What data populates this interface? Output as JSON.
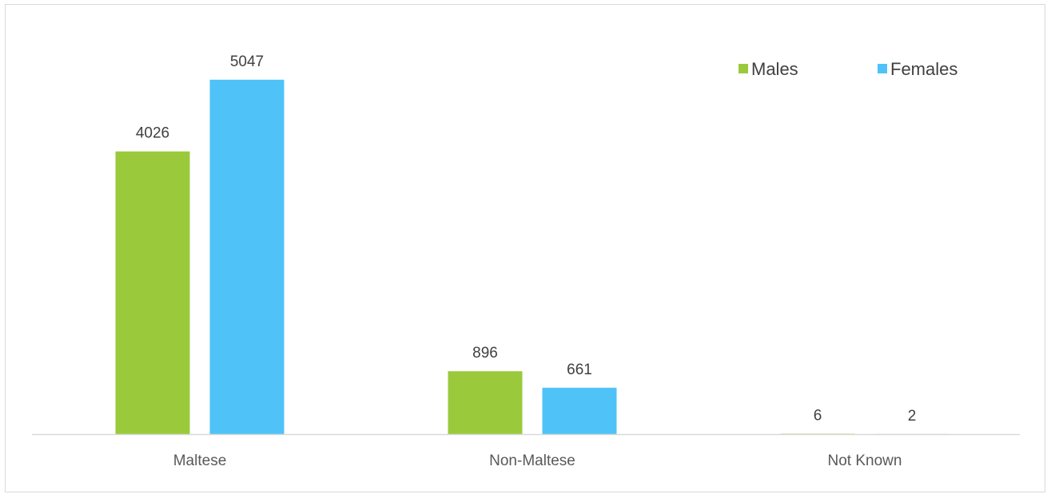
{
  "chart_data": {
    "type": "bar",
    "categories": [
      "Maltese",
      "Non-Maltese",
      "Not Known"
    ],
    "series": [
      {
        "name": "Males",
        "values": [
          4026,
          896,
          6
        ],
        "color": "#9ACA3C"
      },
      {
        "name": "Females",
        "values": [
          5047,
          661,
          2
        ],
        "color": "#4FC3F7"
      }
    ],
    "title": "",
    "xlabel": "",
    "ylabel": "",
    "ylim": [
      0,
      5500
    ],
    "grid": false,
    "legend_position": "top-right",
    "axis_color": "#d9d9d9"
  }
}
